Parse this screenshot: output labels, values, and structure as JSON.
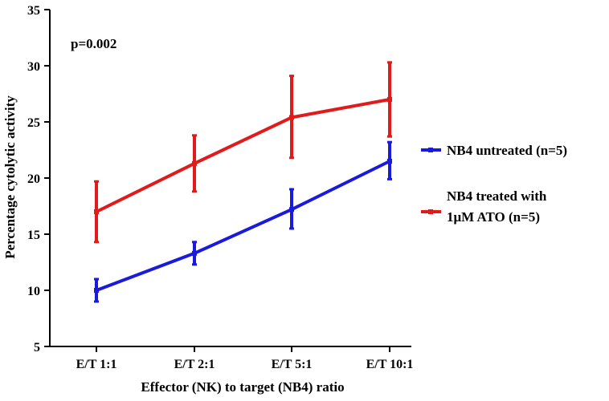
{
  "chart_data": {
    "type": "line",
    "title": "",
    "xlabel": "Effector (NK) to target (NB4) ratio",
    "ylabel": "Percentage cytolytic activity",
    "categories": [
      "E/T 1:1",
      "E/T 2:1",
      "E/T 5:1",
      "E/T 10:1"
    ],
    "ylim": [
      5,
      35
    ],
    "yticks": [
      5,
      10,
      15,
      20,
      25,
      30,
      35
    ],
    "grid": false,
    "legend_position": "right",
    "annotation": "p=0.002",
    "series": [
      {
        "name": "NB4 untreated (n=5)",
        "legend_lines": [
          "NB4 untreated (n=5)"
        ],
        "color": "#1a1adc",
        "values": [
          10.0,
          13.3,
          17.2,
          21.5
        ],
        "err_low": [
          9.0,
          12.3,
          15.5,
          19.9
        ],
        "err_high": [
          11.0,
          14.3,
          19.0,
          23.2
        ]
      },
      {
        "name": "NB4 treated with 1μM ATO (n=5)",
        "legend_lines": [
          "NB4 treated with",
          "1μM ATO (n=5)"
        ],
        "color": "#e01b1b",
        "values": [
          17.0,
          21.3,
          25.4,
          27.0
        ],
        "err_low": [
          14.3,
          18.8,
          21.8,
          23.7
        ],
        "err_high": [
          19.7,
          23.8,
          29.1,
          30.3
        ]
      }
    ]
  }
}
